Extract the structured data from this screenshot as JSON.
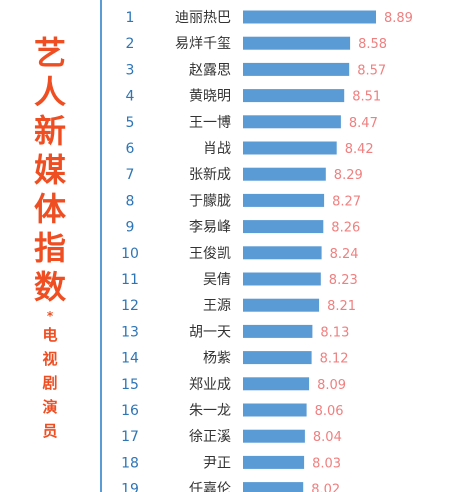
{
  "side_title": {
    "big_chars": [
      "艺",
      "人",
      "新",
      "媒",
      "体",
      "指",
      "数"
    ],
    "asterisk": "*",
    "small_chars": [
      "电",
      "视",
      "剧",
      "演",
      "员"
    ]
  },
  "colors": {
    "bar": "#5b9bd5",
    "rank": "#2e75b6",
    "value": "#f08080",
    "title": "#ee4e22"
  },
  "chart_data": {
    "type": "bar",
    "orientation": "horizontal",
    "ranks": [
      "1",
      "2",
      "3",
      "4",
      "5",
      "6",
      "7",
      "8",
      "9",
      "10",
      "11",
      "12",
      "13",
      "14",
      "15",
      "16",
      "17",
      "18",
      "19"
    ],
    "categories": [
      "迪丽热巴",
      "易烊千玺",
      "赵露思",
      "黄晓明",
      "王一博",
      "肖战",
      "张新成",
      "于朦胧",
      "李易峰",
      "王俊凯",
      "吴倩",
      "王源",
      "胡一天",
      "杨紫",
      "郑业成",
      "朱一龙",
      "徐正溪",
      "尹正",
      "任嘉伦"
    ],
    "values": [
      8.89,
      8.58,
      8.57,
      8.51,
      8.47,
      8.42,
      8.29,
      8.27,
      8.26,
      8.24,
      8.23,
      8.21,
      8.13,
      8.12,
      8.09,
      8.06,
      8.04,
      8.03,
      8.02
    ],
    "value_labels": [
      "8.89",
      "8.58",
      "8.57",
      "8.51",
      "8.47",
      "8.42",
      "8.29",
      "8.27",
      "8.26",
      "8.24",
      "8.23",
      "8.21",
      "8.13",
      "8.12",
      "8.09",
      "8.06",
      "8.04",
      "8.03",
      "8.02"
    ],
    "xlim": [
      7.3,
      8.89
    ]
  }
}
